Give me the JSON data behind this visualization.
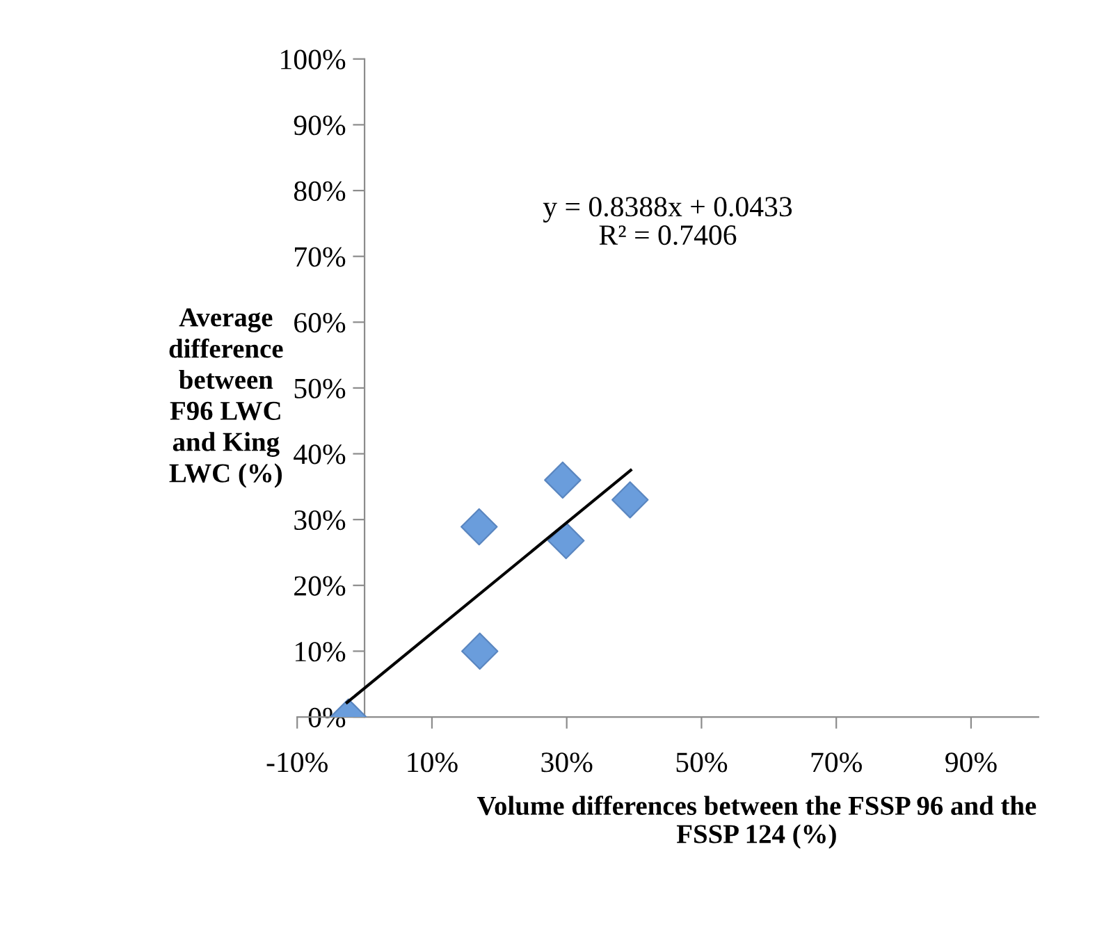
{
  "chart_data": {
    "type": "scatter",
    "xlabel": "Volume differences between the FSSP 96 and the\nFSSP 124 (%)",
    "ylabel": "Average\ndifference\nbetween\nF96 LWC\nand King\nLWC (%)",
    "annotations": [
      "y = 0.8388x + 0.0433\nR² = 0.7406"
    ],
    "x": [
      -2.4,
      17.0,
      17.1,
      29.4,
      29.9,
      39.4
    ],
    "series": [
      {
        "color": "#6a9ddc",
        "marker": "diamond",
        "values": [
          0,
          28.9,
          10.0,
          36.0,
          26.8,
          33.0
        ]
      },
      {
        "type": "line",
        "color": "#000000",
        "marker": "none",
        "line_style": "solid",
        "x": [
          -2.6,
          39.5
        ],
        "values": [
          2.2,
          37.5
        ]
      }
    ],
    "xlim": [
      -10,
      100
    ],
    "xticks": [
      {
        "value": -10,
        "label": "-10%"
      },
      {
        "value": 10,
        "label": "10%"
      },
      {
        "value": 30,
        "label": "30%"
      },
      {
        "value": 50,
        "label": "50%"
      },
      {
        "value": 70,
        "label": "70%"
      },
      {
        "value": 90,
        "label": "90%"
      }
    ],
    "ylim": [
      0,
      100
    ],
    "yticks": [
      {
        "value": 0,
        "label": "0%"
      },
      {
        "value": 10,
        "label": "10%"
      },
      {
        "value": 20,
        "label": "20%"
      },
      {
        "value": 30,
        "label": "30%"
      },
      {
        "value": 40,
        "label": "40%"
      },
      {
        "value": 50,
        "label": "50%"
      },
      {
        "value": 60,
        "label": "60%"
      },
      {
        "value": 70,
        "label": "70%"
      },
      {
        "value": 80,
        "label": "80%"
      },
      {
        "value": 90,
        "label": "90%"
      },
      {
        "value": 100,
        "label": "100%"
      }
    ],
    "grid": false,
    "legend": false
  }
}
